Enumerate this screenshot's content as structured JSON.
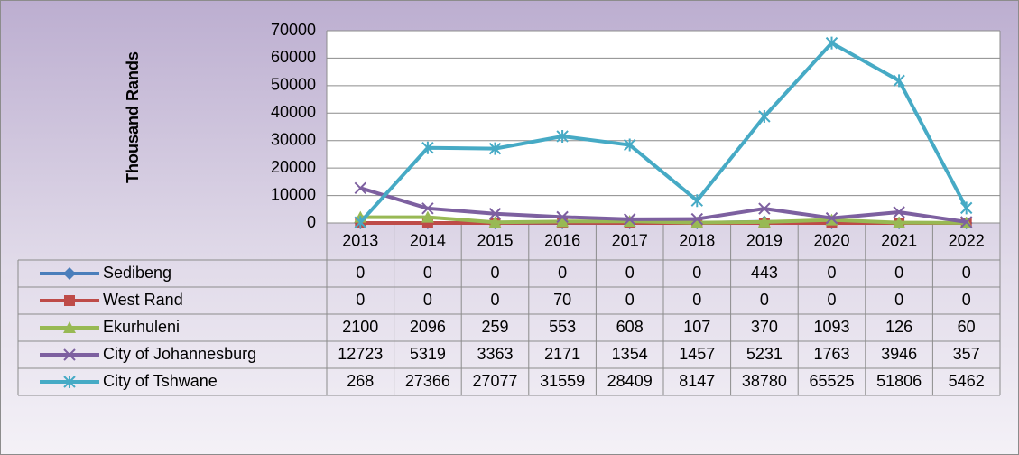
{
  "chart_data": {
    "type": "line",
    "y_axis_label": "Thousand Rands",
    "categories": [
      "2013",
      "2014",
      "2015",
      "2016",
      "2017",
      "2018",
      "2019",
      "2020",
      "2021",
      "2022"
    ],
    "ylim": [
      0,
      70000
    ],
    "yticks": [
      0,
      10000,
      20000,
      30000,
      40000,
      50000,
      60000,
      70000
    ],
    "grid": true,
    "data_table": true,
    "series": [
      {
        "name": "Sedibeng",
        "color": "#4a7ebb",
        "marker": "diamond",
        "values": [
          0,
          0,
          0,
          0,
          0,
          0,
          443,
          0,
          0,
          0
        ]
      },
      {
        "name": "West Rand",
        "color": "#be4b48",
        "marker": "square",
        "values": [
          0,
          0,
          0,
          70,
          0,
          0,
          0,
          0,
          0,
          0
        ]
      },
      {
        "name": "Ekurhuleni",
        "color": "#98b954",
        "marker": "triangle",
        "values": [
          2100,
          2096,
          259,
          553,
          608,
          107,
          370,
          1093,
          126,
          60
        ]
      },
      {
        "name": "City of Johannesburg",
        "color": "#7d60a0",
        "marker": "x",
        "values": [
          12723,
          5319,
          3363,
          2171,
          1354,
          1457,
          5231,
          1763,
          3946,
          357
        ]
      },
      {
        "name": "City of Tshwane",
        "color": "#46aac5",
        "marker": "star",
        "values": [
          268,
          27366,
          27077,
          31559,
          28409,
          8147,
          38780,
          65525,
          51806,
          5462
        ]
      }
    ]
  }
}
